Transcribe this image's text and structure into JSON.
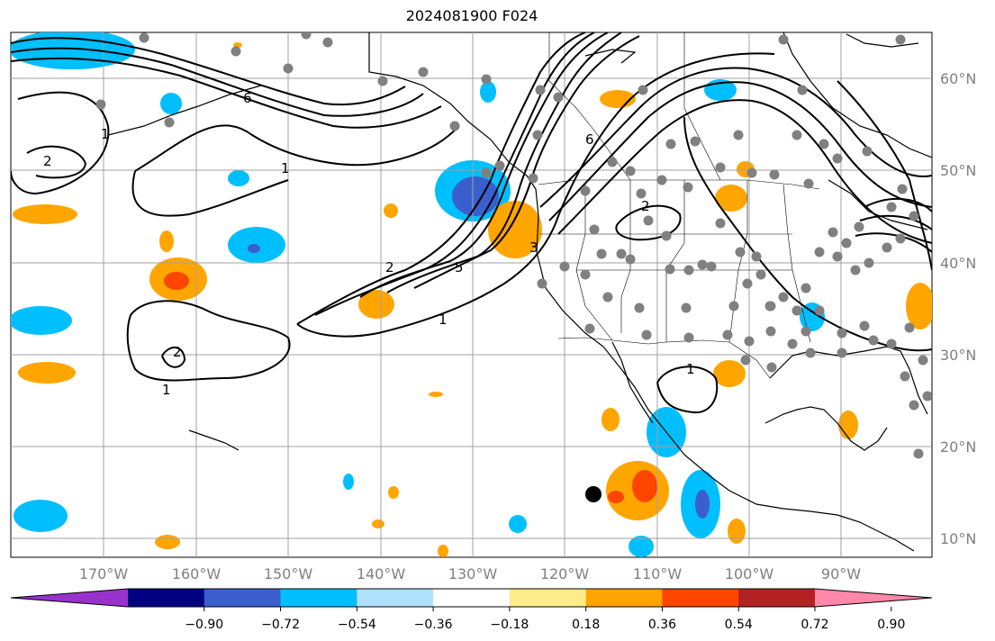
{
  "title": "2024081900 F024",
  "map": {
    "lat_labels": [
      "60°N",
      "50°N",
      "40°N",
      "30°N",
      "20°N",
      "10°N"
    ],
    "lon_labels": [
      "170°W",
      "160°W",
      "150°W",
      "140°W",
      "130°W",
      "120°W",
      "110°W",
      "100°W",
      "90°W"
    ],
    "contour_labels": [
      "2",
      "1",
      "2",
      "1",
      "6",
      "1",
      "2",
      "5",
      "1",
      "3",
      "6",
      "2",
      "1"
    ],
    "colors": {
      "grid": "#a0a0a0",
      "coast": "#000000",
      "contour": "#000000",
      "stations": "#808080",
      "marker": "#000000"
    }
  },
  "colorbar": {
    "ticks": [
      "−0.90",
      "−0.72",
      "−0.54",
      "−0.36",
      "−0.18",
      "0.18",
      "0.36",
      "0.54",
      "0.72",
      "0.90"
    ],
    "colors": [
      "#9932cc",
      "#000080",
      "#3a5fcd",
      "#00bfff",
      "#b0e2ff",
      "#ffffff",
      "#ffec8b",
      "#ffa500",
      "#ff4500",
      "#b22222",
      "#ff88aa"
    ]
  }
}
